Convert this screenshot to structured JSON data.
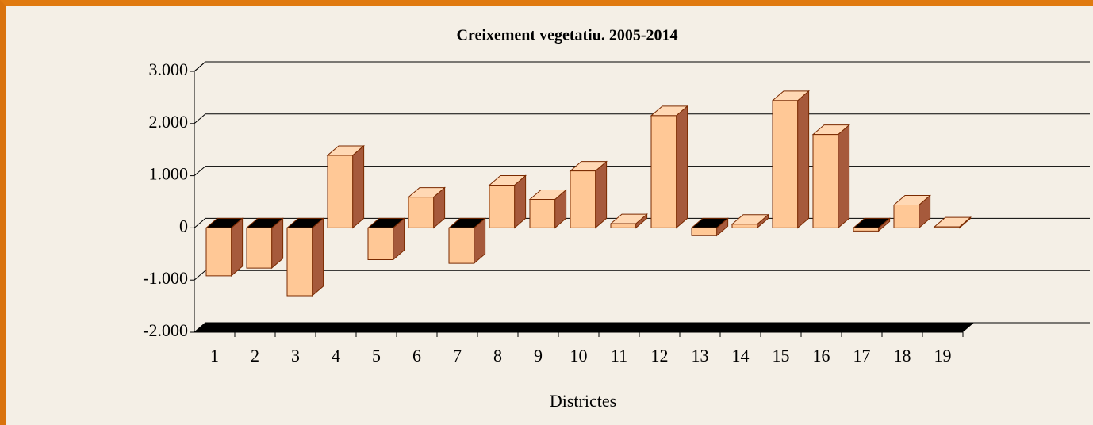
{
  "chart_data": {
    "type": "bar3d",
    "title": "Creixement vegetatiu. 2005-2014",
    "x_label": "Districtes",
    "categories": [
      "1",
      "2",
      "3",
      "4",
      "5",
      "6",
      "7",
      "8",
      "9",
      "10",
      "11",
      "12",
      "13",
      "14",
      "15",
      "16",
      "17",
      "18",
      "19"
    ],
    "values": [
      -920,
      -770,
      -1300,
      1390,
      -610,
      590,
      -680,
      820,
      545,
      1090,
      80,
      2150,
      -150,
      70,
      2440,
      1790,
      -60,
      440,
      20
    ],
    "color": "#ffc896",
    "ylim": [
      -2000,
      3000
    ],
    "yticks": [
      {
        "value": -2000,
        "label": "-2.000"
      },
      {
        "value": -1000,
        "label": "-1.000"
      },
      0,
      {
        "value": 1000,
        "label": "1.000"
      },
      {
        "value": 2000,
        "label": "2.000"
      },
      {
        "value": 3000,
        "label": "3.000"
      }
    ],
    "grid": true
  }
}
